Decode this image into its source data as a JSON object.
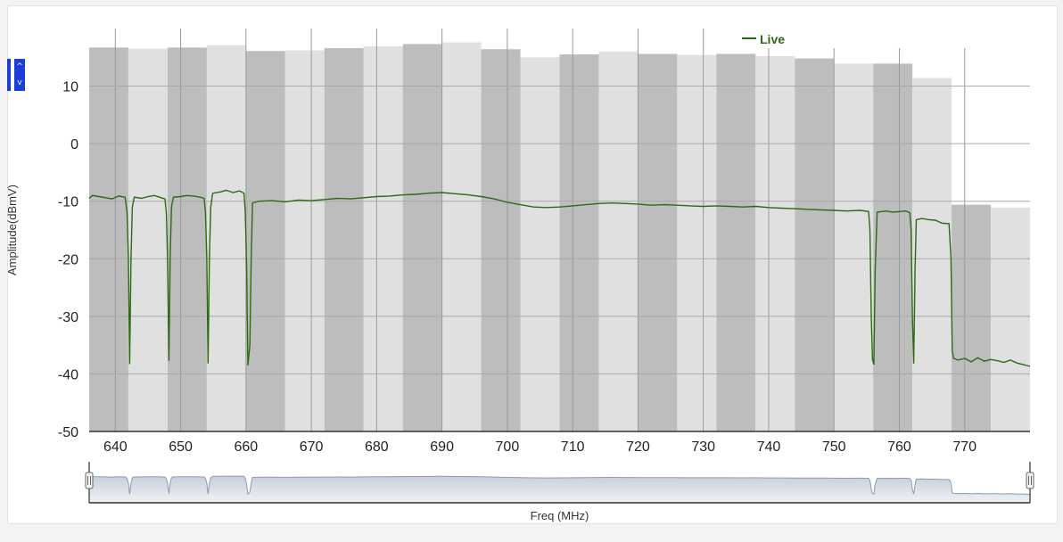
{
  "chart_data": {
    "type": "line",
    "xlabel": "Freq (MHz)",
    "ylabel": "Amplitude(dBmV)",
    "xlim": [
      636,
      780
    ],
    "ylim": [
      -50,
      20
    ],
    "x_ticks": [
      "640",
      "650",
      "660",
      "670",
      "680",
      "690",
      "700",
      "710",
      "720",
      "730",
      "740",
      "750",
      "760",
      "770"
    ],
    "y_ticks": [
      "10",
      "0",
      "-10",
      "-20",
      "-30",
      "-40",
      "-50"
    ],
    "grid": true,
    "legend_position": "top-right",
    "colors": {
      "live": "#2d6a16",
      "band_dark": "#bdbdbd",
      "band_light": "#e0e0e0",
      "navigator_fill": "#c2cad6",
      "navigator_line": "#8a9bb5"
    },
    "channel_bands": [
      {
        "x_start": 636,
        "x_end": 642,
        "level": 16.7,
        "shade": "dark"
      },
      {
        "x_start": 642,
        "x_end": 648,
        "level": 16.5,
        "shade": "light"
      },
      {
        "x_start": 648,
        "x_end": 654,
        "level": 16.7,
        "shade": "dark"
      },
      {
        "x_start": 654,
        "x_end": 660,
        "level": 17.1,
        "shade": "light"
      },
      {
        "x_start": 660,
        "x_end": 666,
        "level": 16.1,
        "shade": "dark"
      },
      {
        "x_start": 666,
        "x_end": 672,
        "level": 16.2,
        "shade": "light"
      },
      {
        "x_start": 672,
        "x_end": 678,
        "level": 16.6,
        "shade": "dark"
      },
      {
        "x_start": 678,
        "x_end": 684,
        "level": 16.9,
        "shade": "light"
      },
      {
        "x_start": 684,
        "x_end": 690,
        "level": 17.3,
        "shade": "dark"
      },
      {
        "x_start": 690,
        "x_end": 696,
        "level": 17.6,
        "shade": "light"
      },
      {
        "x_start": 696,
        "x_end": 702,
        "level": 16.4,
        "shade": "dark"
      },
      {
        "x_start": 702,
        "x_end": 708,
        "level": 15.0,
        "shade": "light"
      },
      {
        "x_start": 708,
        "x_end": 714,
        "level": 15.5,
        "shade": "dark"
      },
      {
        "x_start": 714,
        "x_end": 720,
        "level": 16.0,
        "shade": "light"
      },
      {
        "x_start": 720,
        "x_end": 726,
        "level": 15.6,
        "shade": "dark"
      },
      {
        "x_start": 726,
        "x_end": 732,
        "level": 15.4,
        "shade": "light"
      },
      {
        "x_start": 732,
        "x_end": 738,
        "level": 15.6,
        "shade": "dark"
      },
      {
        "x_start": 738,
        "x_end": 744,
        "level": 15.2,
        "shade": "light"
      },
      {
        "x_start": 744,
        "x_end": 750,
        "level": 14.8,
        "shade": "dark"
      },
      {
        "x_start": 750,
        "x_end": 756,
        "level": 13.9,
        "shade": "light"
      },
      {
        "x_start": 756,
        "x_end": 762,
        "level": 13.9,
        "shade": "dark"
      },
      {
        "x_start": 762,
        "x_end": 768,
        "level": 11.4,
        "shade": "light"
      },
      {
        "x_start": 768,
        "x_end": 774,
        "level": -10.6,
        "shade": "dark"
      },
      {
        "x_start": 774,
        "x_end": 780,
        "level": -11.1,
        "shade": "light"
      }
    ],
    "series": [
      {
        "name": "Live",
        "points": [
          [
            636.0,
            -9.5
          ],
          [
            636.5,
            -9.0
          ],
          [
            637.5,
            -9.2
          ],
          [
            638.5,
            -9.4
          ],
          [
            639.5,
            -9.6
          ],
          [
            640.5,
            -9.1
          ],
          [
            641.5,
            -9.3
          ],
          [
            641.8,
            -12.0
          ],
          [
            642.0,
            -20.0
          ],
          [
            642.2,
            -38.3
          ],
          [
            642.4,
            -20.0
          ],
          [
            642.6,
            -11.0
          ],
          [
            642.9,
            -9.3
          ],
          [
            644.0,
            -9.5
          ],
          [
            645.0,
            -9.2
          ],
          [
            646.0,
            -9.0
          ],
          [
            647.0,
            -9.4
          ],
          [
            647.6,
            -9.6
          ],
          [
            647.8,
            -12.0
          ],
          [
            648.0,
            -20.0
          ],
          [
            648.2,
            -37.7
          ],
          [
            648.4,
            -20.0
          ],
          [
            648.6,
            -11.0
          ],
          [
            648.9,
            -9.3
          ],
          [
            650.0,
            -9.2
          ],
          [
            651.0,
            -9.0
          ],
          [
            652.0,
            -9.1
          ],
          [
            653.0,
            -9.3
          ],
          [
            653.6,
            -9.5
          ],
          [
            653.8,
            -12.0
          ],
          [
            654.0,
            -20.0
          ],
          [
            654.2,
            -38.2
          ],
          [
            654.4,
            -20.0
          ],
          [
            654.6,
            -11.0
          ],
          [
            654.9,
            -8.6
          ],
          [
            656.0,
            -8.4
          ],
          [
            657.0,
            -8.1
          ],
          [
            658.0,
            -8.5
          ],
          [
            659.0,
            -8.2
          ],
          [
            659.7,
            -8.6
          ],
          [
            659.9,
            -12.0
          ],
          [
            660.1,
            -22.0
          ],
          [
            660.3,
            -38.5
          ],
          [
            660.6,
            -35.0
          ],
          [
            660.8,
            -20.0
          ],
          [
            661.0,
            -10.3
          ],
          [
            662.0,
            -10.0
          ],
          [
            664.0,
            -9.9
          ],
          [
            666.0,
            -10.1
          ],
          [
            668.0,
            -9.8
          ],
          [
            670.0,
            -9.9
          ],
          [
            672.0,
            -9.7
          ],
          [
            674.0,
            -9.5
          ],
          [
            676.0,
            -9.6
          ],
          [
            678.0,
            -9.4
          ],
          [
            680.0,
            -9.2
          ],
          [
            682.0,
            -9.1
          ],
          [
            684.0,
            -8.9
          ],
          [
            686.0,
            -8.8
          ],
          [
            688.0,
            -8.6
          ],
          [
            690.0,
            -8.5
          ],
          [
            692.0,
            -8.7
          ],
          [
            694.0,
            -8.9
          ],
          [
            696.0,
            -9.2
          ],
          [
            698.0,
            -9.6
          ],
          [
            700.0,
            -10.2
          ],
          [
            702.0,
            -10.6
          ],
          [
            704.0,
            -11.0
          ],
          [
            706.0,
            -11.1
          ],
          [
            708.0,
            -11.0
          ],
          [
            710.0,
            -10.8
          ],
          [
            712.0,
            -10.6
          ],
          [
            714.0,
            -10.4
          ],
          [
            716.0,
            -10.3
          ],
          [
            718.0,
            -10.4
          ],
          [
            720.0,
            -10.5
          ],
          [
            722.0,
            -10.7
          ],
          [
            724.0,
            -10.6
          ],
          [
            726.0,
            -10.7
          ],
          [
            728.0,
            -10.8
          ],
          [
            730.0,
            -10.9
          ],
          [
            732.0,
            -10.8
          ],
          [
            734.0,
            -10.9
          ],
          [
            736.0,
            -11.0
          ],
          [
            738.0,
            -10.9
          ],
          [
            740.0,
            -11.1
          ],
          [
            742.0,
            -11.2
          ],
          [
            744.0,
            -11.3
          ],
          [
            746.0,
            -11.4
          ],
          [
            748.0,
            -11.5
          ],
          [
            750.0,
            -11.6
          ],
          [
            752.0,
            -11.7
          ],
          [
            754.0,
            -11.6
          ],
          [
            755.3,
            -11.8
          ],
          [
            755.5,
            -15.0
          ],
          [
            755.7,
            -30.0
          ],
          [
            755.9,
            -37.5
          ],
          [
            756.1,
            -38.4
          ],
          [
            756.3,
            -22.0
          ],
          [
            756.6,
            -11.9
          ],
          [
            758.0,
            -11.7
          ],
          [
            759.0,
            -11.9
          ],
          [
            760.0,
            -11.8
          ],
          [
            761.0,
            -11.7
          ],
          [
            761.6,
            -12.0
          ],
          [
            761.8,
            -15.0
          ],
          [
            762.0,
            -30.0
          ],
          [
            762.2,
            -38.2
          ],
          [
            762.4,
            -22.0
          ],
          [
            762.6,
            -13.2
          ],
          [
            763.5,
            -13.0
          ],
          [
            764.5,
            -13.2
          ],
          [
            765.5,
            -13.3
          ],
          [
            766.5,
            -13.8
          ],
          [
            767.6,
            -13.9
          ],
          [
            767.9,
            -20.0
          ],
          [
            768.1,
            -36.0
          ],
          [
            768.3,
            -37.3
          ],
          [
            769.0,
            -37.6
          ],
          [
            770.0,
            -37.3
          ],
          [
            771.0,
            -37.9
          ],
          [
            772.0,
            -37.2
          ],
          [
            773.0,
            -37.8
          ],
          [
            774.0,
            -37.5
          ],
          [
            775.0,
            -37.7
          ],
          [
            776.0,
            -38.0
          ],
          [
            777.0,
            -37.6
          ],
          [
            778.0,
            -38.1
          ],
          [
            779.0,
            -38.4
          ],
          [
            780.0,
            -38.7
          ]
        ]
      }
    ]
  }
}
